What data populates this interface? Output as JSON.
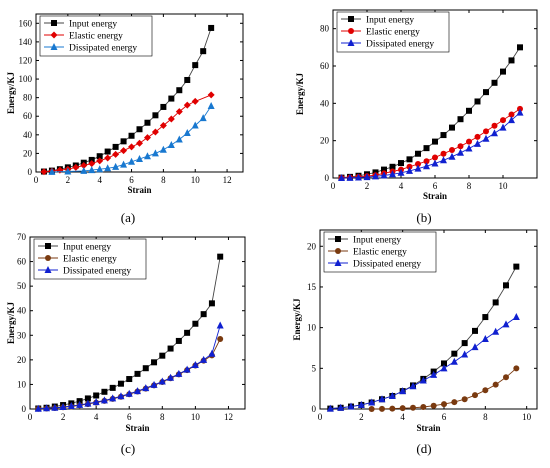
{
  "figure": {
    "colors": {
      "input": "#000000",
      "elastic": "#e00000",
      "dissipated": "#1020d0",
      "elastic_brown": "#7a3a10",
      "line": "#555555"
    }
  },
  "chart_data": [
    {
      "id": "a",
      "caption": "(a)",
      "type": "line",
      "xlabel": "Strain",
      "ylabel": "Energy/KJ",
      "xlim": [
        0,
        13
      ],
      "ylim": [
        0,
        170
      ],
      "xticks": [
        0,
        2,
        4,
        6,
        8,
        10,
        12
      ],
      "yticks": [
        0,
        20,
        40,
        60,
        80,
        100,
        120,
        140,
        160
      ],
      "legend": "top-left",
      "series": [
        {
          "name": "Input energy",
          "marker": "square",
          "color": "#555555",
          "x": [
            0.5,
            1,
            1.5,
            2,
            2.5,
            3,
            3.5,
            4,
            4.5,
            5,
            5.5,
            6,
            6.5,
            7,
            7.5,
            8,
            8.5,
            9,
            9.5,
            10,
            10.5,
            11
          ],
          "y": [
            0.5,
            1.5,
            3,
            5,
            7,
            10,
            13,
            17,
            22,
            27,
            33,
            39,
            46,
            53,
            61,
            70,
            79,
            88,
            99,
            115,
            130,
            155
          ]
        },
        {
          "name": "Elastic energy",
          "marker": "diamond",
          "color": "#e00000",
          "x": [
            0.5,
            1,
            1.5,
            2,
            2.5,
            3,
            3.5,
            4,
            4.5,
            5,
            5.5,
            6,
            6.5,
            7,
            7.5,
            8,
            8.5,
            9,
            9.5,
            10,
            11
          ],
          "y": [
            0.3,
            1,
            2,
            3,
            5,
            7,
            9,
            12,
            15,
            19,
            23,
            27,
            31,
            37,
            43,
            50,
            57,
            65,
            72,
            76,
            83
          ]
        },
        {
          "name": "Dissipated energy",
          "marker": "triangle",
          "color": "#1878d0",
          "x": [
            1,
            2,
            3,
            3.5,
            4,
            4.5,
            5,
            5.5,
            6,
            6.5,
            7,
            7.5,
            8,
            8.5,
            9,
            9.5,
            10,
            10.5,
            11
          ],
          "y": [
            0.1,
            0.5,
            1.2,
            2,
            3,
            4,
            5.5,
            8,
            11,
            14,
            17,
            20,
            24,
            29,
            35,
            42,
            50,
            58,
            71
          ]
        }
      ]
    },
    {
      "id": "b",
      "caption": "(b)",
      "type": "line",
      "xlabel": "Strain",
      "ylabel": "Energy/KJ",
      "xlim": [
        0,
        12
      ],
      "ylim": [
        0,
        90
      ],
      "xticks": [
        0,
        2,
        4,
        6,
        8,
        10
      ],
      "yticks": [
        0,
        20,
        40,
        60,
        80
      ],
      "legend": "top-left",
      "series": [
        {
          "name": "Input energy",
          "marker": "square",
          "color": "#000000",
          "x": [
            0.5,
            1,
            1.5,
            2,
            2.5,
            3,
            3.5,
            4,
            4.5,
            5,
            5.5,
            6,
            6.5,
            7,
            7.5,
            8,
            8.5,
            9,
            9.5,
            10,
            10.5,
            11
          ],
          "y": [
            0.2,
            0.6,
            1.2,
            2,
            3,
            4.5,
            6,
            8,
            10,
            13,
            16,
            19.5,
            23,
            27,
            31.5,
            36,
            41,
            46,
            51,
            57,
            63,
            70
          ]
        },
        {
          "name": "Elastic energy",
          "marker": "circle",
          "color": "#e00000",
          "x": [
            0.5,
            1,
            1.5,
            2,
            2.5,
            3,
            3.5,
            4,
            4.5,
            5,
            5.5,
            6,
            6.5,
            7,
            7.5,
            8,
            8.5,
            9,
            9.5,
            10,
            10.5,
            11
          ],
          "y": [
            0.1,
            0.3,
            0.6,
            1,
            1.5,
            2.5,
            3.5,
            4.5,
            6,
            7.5,
            9,
            11,
            13,
            15,
            17,
            19.5,
            22,
            25,
            28,
            31,
            34,
            37
          ]
        },
        {
          "name": "Dissipated energy",
          "marker": "triangle",
          "color": "#1020d0",
          "x": [
            0.5,
            1,
            1.5,
            2,
            2.5,
            3,
            3.5,
            4,
            4.5,
            5,
            5.5,
            6,
            6.5,
            7,
            7.5,
            8,
            8.5,
            9,
            9.5,
            10,
            10.5,
            11
          ],
          "y": [
            0,
            0.1,
            0.3,
            0.5,
            0.9,
            1.4,
            2,
            2.8,
            3.8,
            5,
            6.3,
            7.8,
            9.5,
            11.4,
            13.5,
            15.8,
            18.3,
            21,
            24,
            27,
            31,
            35
          ]
        }
      ]
    },
    {
      "id": "c",
      "caption": "(c)",
      "type": "line",
      "xlabel": "Strain",
      "ylabel": "Energy/KJ",
      "xlim": [
        0,
        13
      ],
      "ylim": [
        0,
        70
      ],
      "xticks": [
        0,
        2,
        4,
        6,
        8,
        10,
        12
      ],
      "yticks": [
        0,
        10,
        20,
        30,
        40,
        50,
        60,
        70
      ],
      "legend": "top-left",
      "series": [
        {
          "name": "Input energy",
          "marker": "square",
          "color": "#000000",
          "x": [
            0.5,
            1,
            1.5,
            2,
            2.5,
            3,
            3.5,
            4,
            4.5,
            5,
            5.5,
            6,
            6.5,
            7,
            7.5,
            8,
            8.5,
            9,
            9.5,
            10,
            10.5,
            11,
            11.5
          ],
          "y": [
            0.2,
            0.5,
            1,
            1.6,
            2.3,
            3.2,
            4.3,
            5.5,
            7,
            8.6,
            10.3,
            12.2,
            14.3,
            16.6,
            19,
            21.7,
            24.6,
            27.7,
            31,
            34.7,
            38.6,
            43,
            62
          ]
        },
        {
          "name": "Elastic energy",
          "marker": "circle",
          "color": "#7a3a10",
          "x": [
            0.5,
            1,
            1.5,
            2,
            2.5,
            3,
            3.5,
            4,
            4.5,
            5,
            5.5,
            6,
            6.5,
            7,
            7.5,
            8,
            8.5,
            9,
            9.5,
            10,
            10.5,
            11,
            11.5
          ],
          "y": [
            0.1,
            0.2,
            0.4,
            0.7,
            1,
            1.5,
            2,
            2.6,
            3.3,
            4.1,
            5,
            6,
            7.1,
            8.3,
            9.6,
            11,
            12.5,
            14.1,
            15.8,
            17.7,
            19.7,
            21.8,
            28.5
          ]
        },
        {
          "name": "Dissipated energy",
          "marker": "triangle",
          "color": "#1020d0",
          "x": [
            0.5,
            1,
            1.5,
            2,
            2.5,
            3,
            3.5,
            4,
            4.5,
            5,
            5.5,
            6,
            6.5,
            7,
            7.5,
            8,
            8.5,
            9,
            9.5,
            10,
            10.5,
            11,
            11.5
          ],
          "y": [
            0.1,
            0.3,
            0.5,
            0.8,
            1.2,
            1.7,
            2.2,
            2.8,
            3.5,
            4.3,
            5.2,
            6.2,
            7.3,
            8.5,
            9.8,
            11.2,
            12.7,
            14.3,
            16,
            17.9,
            20,
            22.5,
            34
          ]
        }
      ]
    },
    {
      "id": "d",
      "caption": "(d)",
      "type": "line",
      "xlabel": "Strain",
      "ylabel": "Energy/KJ",
      "xlim": [
        0,
        10.5
      ],
      "ylim": [
        0,
        22
      ],
      "xticks": [
        0,
        2,
        4,
        6,
        8,
        10
      ],
      "yticks": [
        0,
        5,
        10,
        15,
        20
      ],
      "legend": "top-left",
      "series": [
        {
          "name": "Input energy",
          "marker": "square",
          "color": "#000000",
          "x": [
            0.5,
            1,
            1.5,
            2,
            2.5,
            3,
            3.5,
            4,
            4.5,
            5,
            5.5,
            6,
            6.5,
            7,
            7.5,
            8,
            8.5,
            9,
            9.5
          ],
          "y": [
            0.05,
            0.15,
            0.3,
            0.5,
            0.8,
            1.2,
            1.6,
            2.2,
            2.9,
            3.7,
            4.6,
            5.6,
            6.8,
            8.1,
            9.6,
            11.3,
            13.1,
            15.2,
            17.5
          ]
        },
        {
          "name": "Elastic energy",
          "marker": "circle",
          "color": "#7a3a10",
          "x": [
            2.5,
            3,
            3.5,
            4,
            4.5,
            5,
            5.5,
            6,
            6.5,
            7,
            7.5,
            8,
            8.5,
            9,
            9.5
          ],
          "y": [
            0,
            0.02,
            0.05,
            0.1,
            0.15,
            0.25,
            0.4,
            0.6,
            0.85,
            1.2,
            1.7,
            2.3,
            3,
            3.9,
            5
          ]
        },
        {
          "name": "Dissipated energy",
          "marker": "triangle",
          "color": "#1020d0",
          "x": [
            0.5,
            1,
            1.5,
            2,
            2.5,
            3,
            3.5,
            4,
            4.5,
            5,
            5.5,
            6,
            6.5,
            7,
            7.5,
            8,
            8.5,
            9,
            9.5
          ],
          "y": [
            0.05,
            0.15,
            0.3,
            0.5,
            0.8,
            1.2,
            1.6,
            2.2,
            2.8,
            3.5,
            4.2,
            5,
            5.8,
            6.7,
            7.6,
            8.6,
            9.5,
            10.4,
            11.3
          ]
        }
      ]
    }
  ]
}
